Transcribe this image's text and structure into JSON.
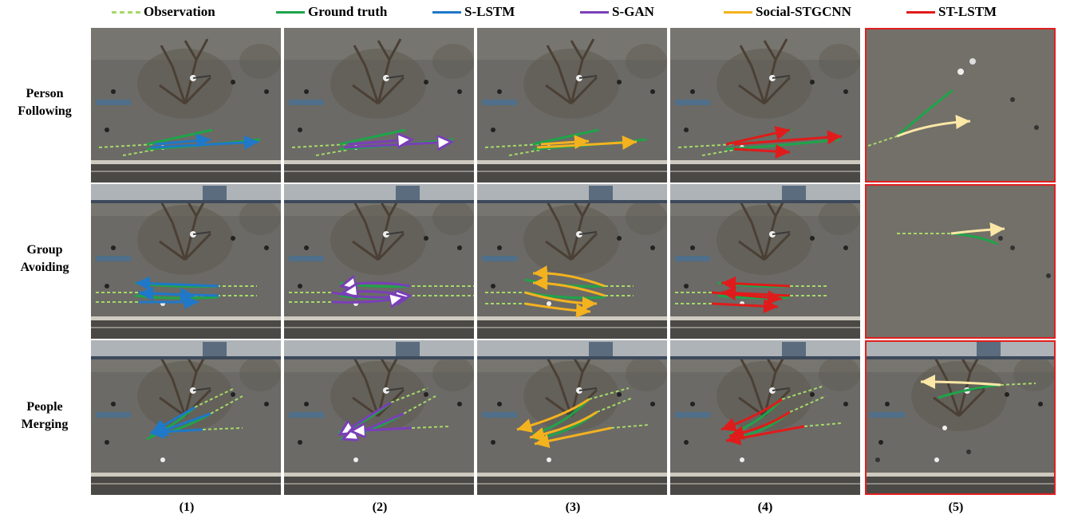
{
  "legend": [
    {
      "label": "Observation",
      "color": "#a6d86a",
      "dashed": true
    },
    {
      "label": "Ground truth",
      "color": "#1fa44a",
      "dashed": false
    },
    {
      "label": "S-LSTM",
      "color": "#1f78c8",
      "dashed": false
    },
    {
      "label": "S-GAN",
      "color": "#7a3fb8",
      "dashed": false
    },
    {
      "label": "Social-STGCNN",
      "color": "#f4b21f",
      "dashed": false
    },
    {
      "label": "ST-LSTM",
      "color": "#e01b1b",
      "dashed": false
    }
  ],
  "rows": [
    {
      "line1": "Person",
      "line2": "Following"
    },
    {
      "line1": "Group",
      "line2": "Avoiding"
    },
    {
      "line1": "People",
      "line2": "Merging"
    }
  ],
  "columns": [
    "(1)",
    "(2)",
    "(3)",
    "(4)",
    "(5)"
  ],
  "column_methods": [
    "S-LSTM",
    "S-GAN",
    "Social-STGCNN",
    "ST-LSTM",
    "ST-LSTM"
  ],
  "highlight_column": "(5)",
  "colors": {
    "observation": "#a6d86a",
    "ground_truth": "#1fa44a",
    "s_lstm": "#1f78c8",
    "s_gan": "#7a3fb8",
    "social_stgcnn": "#f4b21f",
    "st_lstm": "#e01b1b",
    "column5_prediction": "#fbe7a6",
    "highlight_border": "#e02020",
    "pavement": "#6b6a66"
  }
}
